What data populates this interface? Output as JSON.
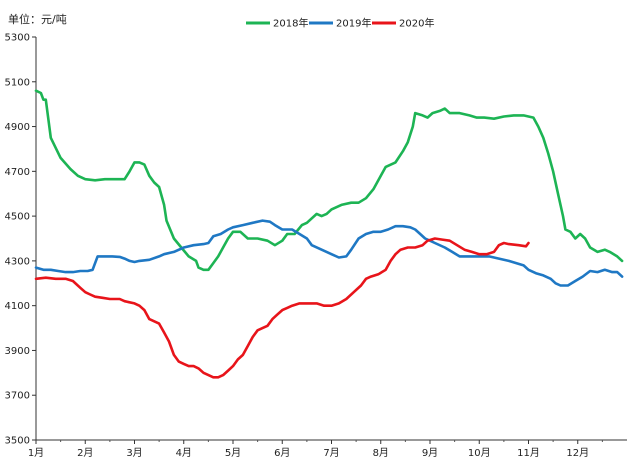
{
  "chart_data": {
    "type": "line",
    "unit_label": "单位：元/吨",
    "title": "",
    "xlabel": "",
    "ylabel": "",
    "ylim": [
      3500,
      5300
    ],
    "yticks": [
      3500,
      3700,
      3900,
      4100,
      4300,
      4500,
      4700,
      4900,
      5100,
      5300
    ],
    "xlim": [
      1,
      13
    ],
    "xticks": [
      {
        "v": 1,
        "label": "1月"
      },
      {
        "v": 2,
        "label": "2月"
      },
      {
        "v": 3,
        "label": "3月"
      },
      {
        "v": 4,
        "label": "4月"
      },
      {
        "v": 5,
        "label": "5月"
      },
      {
        "v": 6,
        "label": "6月"
      },
      {
        "v": 7,
        "label": "7月"
      },
      {
        "v": 8,
        "label": "8月"
      },
      {
        "v": 9,
        "label": "9月"
      },
      {
        "v": 10,
        "label": "10月"
      },
      {
        "v": 11,
        "label": "11月"
      },
      {
        "v": 12,
        "label": "12月"
      }
    ],
    "legend_position": "top-center",
    "grid": false,
    "series": [
      {
        "name": "2018年",
        "color": "#1db454",
        "points": [
          [
            1.0,
            5060
          ],
          [
            1.1,
            5050
          ],
          [
            1.15,
            5020
          ],
          [
            1.2,
            5020
          ],
          [
            1.3,
            4850
          ],
          [
            1.5,
            4760
          ],
          [
            1.7,
            4710
          ],
          [
            1.85,
            4680
          ],
          [
            2.0,
            4665
          ],
          [
            2.2,
            4660
          ],
          [
            2.4,
            4665
          ],
          [
            2.6,
            4665
          ],
          [
            2.8,
            4665
          ],
          [
            2.9,
            4700
          ],
          [
            3.0,
            4740
          ],
          [
            3.1,
            4740
          ],
          [
            3.2,
            4730
          ],
          [
            3.3,
            4680
          ],
          [
            3.4,
            4650
          ],
          [
            3.5,
            4630
          ],
          [
            3.6,
            4550
          ],
          [
            3.65,
            4480
          ],
          [
            3.8,
            4400
          ],
          [
            3.95,
            4360
          ],
          [
            4.1,
            4320
          ],
          [
            4.25,
            4300
          ],
          [
            4.3,
            4270
          ],
          [
            4.4,
            4260
          ],
          [
            4.5,
            4260
          ],
          [
            4.6,
            4290
          ],
          [
            4.7,
            4320
          ],
          [
            4.8,
            4360
          ],
          [
            4.9,
            4400
          ],
          [
            5.0,
            4430
          ],
          [
            5.15,
            4430
          ],
          [
            5.3,
            4400
          ],
          [
            5.5,
            4400
          ],
          [
            5.7,
            4390
          ],
          [
            5.85,
            4370
          ],
          [
            6.0,
            4390
          ],
          [
            6.1,
            4420
          ],
          [
            6.25,
            4420
          ],
          [
            6.4,
            4460
          ],
          [
            6.5,
            4470
          ],
          [
            6.6,
            4490
          ],
          [
            6.7,
            4510
          ],
          [
            6.8,
            4500
          ],
          [
            6.9,
            4510
          ],
          [
            7.0,
            4530
          ],
          [
            7.2,
            4550
          ],
          [
            7.4,
            4560
          ],
          [
            7.55,
            4560
          ],
          [
            7.7,
            4580
          ],
          [
            7.85,
            4620
          ],
          [
            8.0,
            4680
          ],
          [
            8.1,
            4720
          ],
          [
            8.3,
            4740
          ],
          [
            8.45,
            4790
          ],
          [
            8.55,
            4830
          ],
          [
            8.65,
            4900
          ],
          [
            8.7,
            4960
          ],
          [
            8.85,
            4950
          ],
          [
            8.95,
            4940
          ],
          [
            9.05,
            4960
          ],
          [
            9.2,
            4970
          ],
          [
            9.3,
            4980
          ],
          [
            9.4,
            4960
          ],
          [
            9.6,
            4960
          ],
          [
            9.8,
            4950
          ],
          [
            9.95,
            4940
          ],
          [
            10.1,
            4940
          ],
          [
            10.3,
            4935
          ],
          [
            10.5,
            4945
          ],
          [
            10.7,
            4950
          ],
          [
            10.9,
            4950
          ],
          [
            11.0,
            4945
          ],
          [
            11.1,
            4940
          ],
          [
            11.2,
            4900
          ],
          [
            11.3,
            4850
          ],
          [
            11.4,
            4780
          ],
          [
            11.5,
            4700
          ],
          [
            11.6,
            4600
          ],
          [
            11.7,
            4500
          ],
          [
            11.75,
            4440
          ],
          [
            11.85,
            4430
          ],
          [
            11.95,
            4400
          ],
          [
            12.05,
            4420
          ],
          [
            12.15,
            4400
          ],
          [
            12.25,
            4360
          ],
          [
            12.4,
            4340
          ],
          [
            12.55,
            4350
          ],
          [
            12.65,
            4340
          ],
          [
            12.8,
            4320
          ],
          [
            12.9,
            4300
          ]
        ]
      },
      {
        "name": "2019年",
        "color": "#1f78c4",
        "points": [
          [
            1.0,
            4270
          ],
          [
            1.15,
            4260
          ],
          [
            1.3,
            4260
          ],
          [
            1.45,
            4255
          ],
          [
            1.6,
            4250
          ],
          [
            1.75,
            4250
          ],
          [
            1.9,
            4255
          ],
          [
            2.05,
            4255
          ],
          [
            2.15,
            4260
          ],
          [
            2.25,
            4320
          ],
          [
            2.4,
            4320
          ],
          [
            2.55,
            4320
          ],
          [
            2.7,
            4318
          ],
          [
            2.8,
            4310
          ],
          [
            2.9,
            4300
          ],
          [
            3.0,
            4295
          ],
          [
            3.1,
            4300
          ],
          [
            3.3,
            4305
          ],
          [
            3.5,
            4320
          ],
          [
            3.6,
            4330
          ],
          [
            3.8,
            4340
          ],
          [
            4.0,
            4360
          ],
          [
            4.2,
            4370
          ],
          [
            4.4,
            4375
          ],
          [
            4.5,
            4380
          ],
          [
            4.6,
            4410
          ],
          [
            4.75,
            4420
          ],
          [
            4.9,
            4440
          ],
          [
            5.0,
            4450
          ],
          [
            5.2,
            4460
          ],
          [
            5.4,
            4470
          ],
          [
            5.6,
            4480
          ],
          [
            5.75,
            4475
          ],
          [
            5.85,
            4460
          ],
          [
            6.0,
            4440
          ],
          [
            6.2,
            4440
          ],
          [
            6.35,
            4420
          ],
          [
            6.5,
            4400
          ],
          [
            6.6,
            4370
          ],
          [
            6.75,
            4355
          ],
          [
            6.9,
            4340
          ],
          [
            7.0,
            4330
          ],
          [
            7.15,
            4315
          ],
          [
            7.3,
            4320
          ],
          [
            7.4,
            4350
          ],
          [
            7.55,
            4400
          ],
          [
            7.7,
            4420
          ],
          [
            7.85,
            4430
          ],
          [
            8.0,
            4430
          ],
          [
            8.15,
            4440
          ],
          [
            8.3,
            4455
          ],
          [
            8.45,
            4455
          ],
          [
            8.6,
            4450
          ],
          [
            8.7,
            4440
          ],
          [
            8.8,
            4420
          ],
          [
            8.9,
            4400
          ],
          [
            9.0,
            4390
          ],
          [
            9.1,
            4380
          ],
          [
            9.3,
            4360
          ],
          [
            9.45,
            4340
          ],
          [
            9.6,
            4320
          ],
          [
            9.8,
            4320
          ],
          [
            10.0,
            4320
          ],
          [
            10.2,
            4320
          ],
          [
            10.4,
            4310
          ],
          [
            10.6,
            4300
          ],
          [
            10.75,
            4290
          ],
          [
            10.9,
            4280
          ],
          [
            11.0,
            4260
          ],
          [
            11.15,
            4245
          ],
          [
            11.3,
            4235
          ],
          [
            11.45,
            4220
          ],
          [
            11.55,
            4200
          ],
          [
            11.65,
            4190
          ],
          [
            11.8,
            4190
          ],
          [
            11.95,
            4210
          ],
          [
            12.1,
            4230
          ],
          [
            12.25,
            4255
          ],
          [
            12.4,
            4250
          ],
          [
            12.55,
            4260
          ],
          [
            12.7,
            4250
          ],
          [
            12.8,
            4250
          ],
          [
            12.9,
            4230
          ]
        ]
      },
      {
        "name": "2020年",
        "color": "#e8141a",
        "points": [
          [
            1.0,
            4220
          ],
          [
            1.2,
            4225
          ],
          [
            1.4,
            4220
          ],
          [
            1.6,
            4220
          ],
          [
            1.75,
            4210
          ],
          [
            1.9,
            4180
          ],
          [
            2.0,
            4160
          ],
          [
            2.1,
            4150
          ],
          [
            2.2,
            4140
          ],
          [
            2.35,
            4135
          ],
          [
            2.5,
            4130
          ],
          [
            2.7,
            4130
          ],
          [
            2.8,
            4120
          ],
          [
            3.0,
            4110
          ],
          [
            3.1,
            4100
          ],
          [
            3.2,
            4080
          ],
          [
            3.3,
            4040
          ],
          [
            3.4,
            4030
          ],
          [
            3.5,
            4020
          ],
          [
            3.6,
            3980
          ],
          [
            3.7,
            3940
          ],
          [
            3.8,
            3880
          ],
          [
            3.9,
            3850
          ],
          [
            4.0,
            3840
          ],
          [
            4.1,
            3830
          ],
          [
            4.2,
            3830
          ],
          [
            4.3,
            3820
          ],
          [
            4.4,
            3800
          ],
          [
            4.5,
            3790
          ],
          [
            4.6,
            3780
          ],
          [
            4.7,
            3780
          ],
          [
            4.8,
            3790
          ],
          [
            4.9,
            3810
          ],
          [
            5.0,
            3830
          ],
          [
            5.1,
            3860
          ],
          [
            5.2,
            3880
          ],
          [
            5.3,
            3920
          ],
          [
            5.4,
            3960
          ],
          [
            5.5,
            3990
          ],
          [
            5.6,
            4000
          ],
          [
            5.7,
            4010
          ],
          [
            5.8,
            4040
          ],
          [
            5.9,
            4060
          ],
          [
            6.0,
            4080
          ],
          [
            6.1,
            4090
          ],
          [
            6.2,
            4100
          ],
          [
            6.35,
            4110
          ],
          [
            6.5,
            4110
          ],
          [
            6.7,
            4110
          ],
          [
            6.85,
            4100
          ],
          [
            7.0,
            4100
          ],
          [
            7.15,
            4110
          ],
          [
            7.3,
            4130
          ],
          [
            7.45,
            4160
          ],
          [
            7.6,
            4190
          ],
          [
            7.7,
            4220
          ],
          [
            7.8,
            4230
          ],
          [
            7.95,
            4240
          ],
          [
            8.1,
            4260
          ],
          [
            8.2,
            4300
          ],
          [
            8.3,
            4330
          ],
          [
            8.4,
            4350
          ],
          [
            8.55,
            4360
          ],
          [
            8.7,
            4360
          ],
          [
            8.85,
            4370
          ],
          [
            8.95,
            4390
          ],
          [
            9.1,
            4400
          ],
          [
            9.25,
            4395
          ],
          [
            9.4,
            4390
          ],
          [
            9.55,
            4370
          ],
          [
            9.7,
            4350
          ],
          [
            9.85,
            4340
          ],
          [
            10.0,
            4330
          ],
          [
            10.15,
            4330
          ],
          [
            10.3,
            4340
          ],
          [
            10.4,
            4370
          ],
          [
            10.5,
            4380
          ],
          [
            10.6,
            4375
          ],
          [
            10.8,
            4370
          ],
          [
            10.95,
            4365
          ],
          [
            11.0,
            4380
          ]
        ]
      }
    ]
  }
}
